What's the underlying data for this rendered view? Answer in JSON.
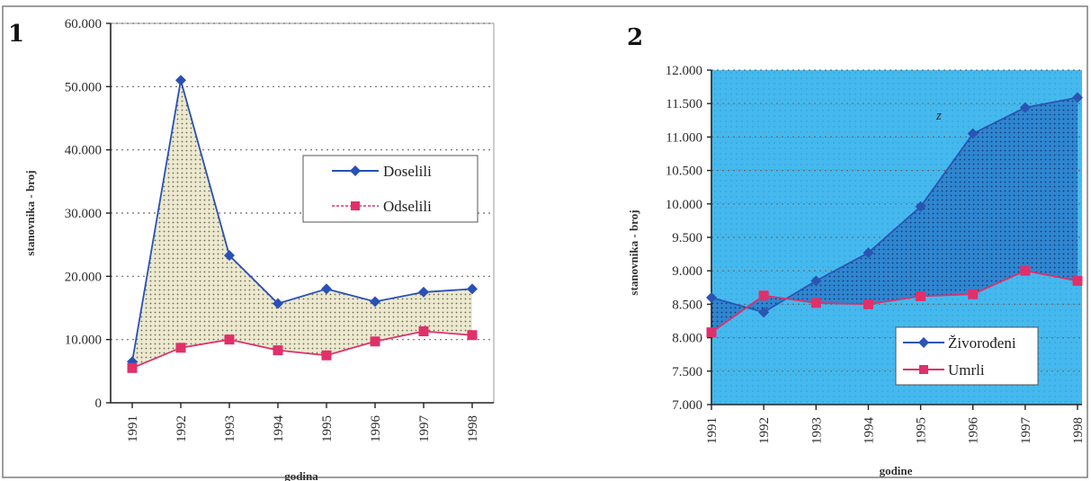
{
  "panels": [
    {
      "number": "1"
    },
    {
      "number": "2"
    }
  ],
  "chart_data": [
    {
      "type": "line",
      "x": [
        "1991",
        "1992",
        "1993",
        "1994",
        "1995",
        "1996",
        "1997",
        "1998"
      ],
      "xlabel": "godina",
      "ylabel": "stanovnika - broj",
      "ylim": [
        0,
        60000
      ],
      "yticks": [
        "0",
        "10.000",
        "20.000",
        "30.000",
        "40.000",
        "50.000",
        "60.000"
      ],
      "ytick_values": [
        0,
        10000,
        20000,
        30000,
        40000,
        50000,
        60000
      ],
      "grid": "horizontal dotted",
      "legend": "right",
      "area_between_series": true,
      "series": [
        {
          "name": "Doselili",
          "values": [
            6500,
            51000,
            23300,
            15700,
            18000,
            16000,
            17500,
            18000
          ],
          "color": "#2950b5",
          "marker": "diamond"
        },
        {
          "name": "Odselili",
          "values": [
            5500,
            8700,
            10000,
            8300,
            7500,
            9700,
            11300,
            10700
          ],
          "color": "#e0306a",
          "marker": "square"
        }
      ],
      "fill_color": "#e7e4c8",
      "plot_background": "#ffffff"
    },
    {
      "type": "line",
      "x": [
        "1991",
        "1992",
        "1993",
        "1994",
        "1995",
        "1996",
        "1997",
        "1998"
      ],
      "xlabel": "godine",
      "ylabel": "stanovnika - broj",
      "ylim": [
        7000,
        12000
      ],
      "yticks": [
        "7.000",
        "7.500",
        "8.000",
        "8.500",
        "9.000",
        "9.500",
        "10.000",
        "10.500",
        "11.000",
        "11.500",
        "12.000"
      ],
      "ytick_values": [
        7000,
        7500,
        8000,
        8500,
        9000,
        9500,
        10000,
        10500,
        11000,
        11500,
        12000
      ],
      "grid": "horizontal dotted",
      "legend": "bottom-right",
      "annotation": "z",
      "area_between_series": true,
      "series": [
        {
          "name": "Živorođeni",
          "values": [
            8600,
            8380,
            8850,
            9270,
            9960,
            11050,
            11440,
            11590
          ],
          "color": "#2a55b2",
          "marker": "diamond"
        },
        {
          "name": "Umrli",
          "values": [
            8080,
            8630,
            8520,
            8500,
            8620,
            8650,
            9000,
            8850
          ],
          "color": "#e0306a",
          "marker": "square"
        }
      ],
      "fill_color": "#2a74c8",
      "plot_background": "#3fb6ec"
    }
  ]
}
